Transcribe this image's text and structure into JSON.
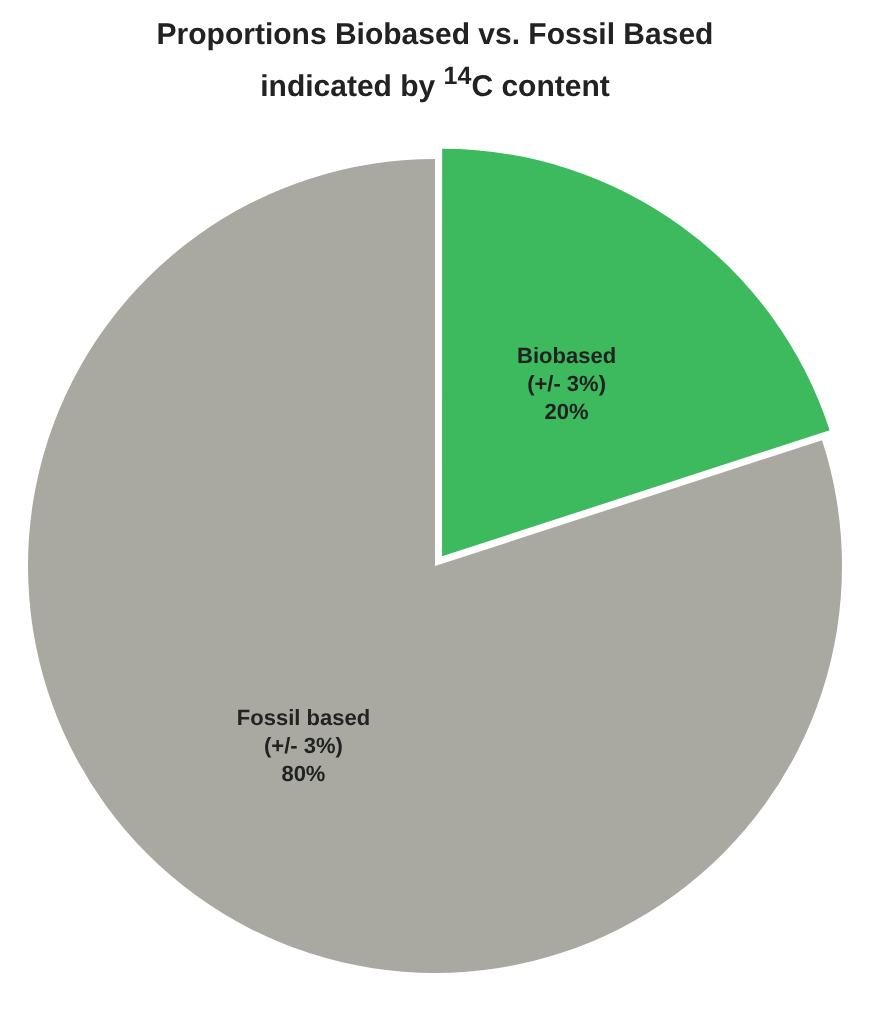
{
  "chart_data": {
    "type": "pie",
    "title": "Proportions Biobased vs. Fossil Based indicated by $^{14}$C content",
    "categories": [
      "Biobased",
      "Fossil based"
    ],
    "values": [
      20,
      80
    ],
    "colors": [
      "#3dba5e",
      "#a9a9a2"
    ],
    "value_labels": [
      "(+/- 3%)\n20%",
      "(+/- 3%)\n80%"
    ],
    "legend": false
  }
}
